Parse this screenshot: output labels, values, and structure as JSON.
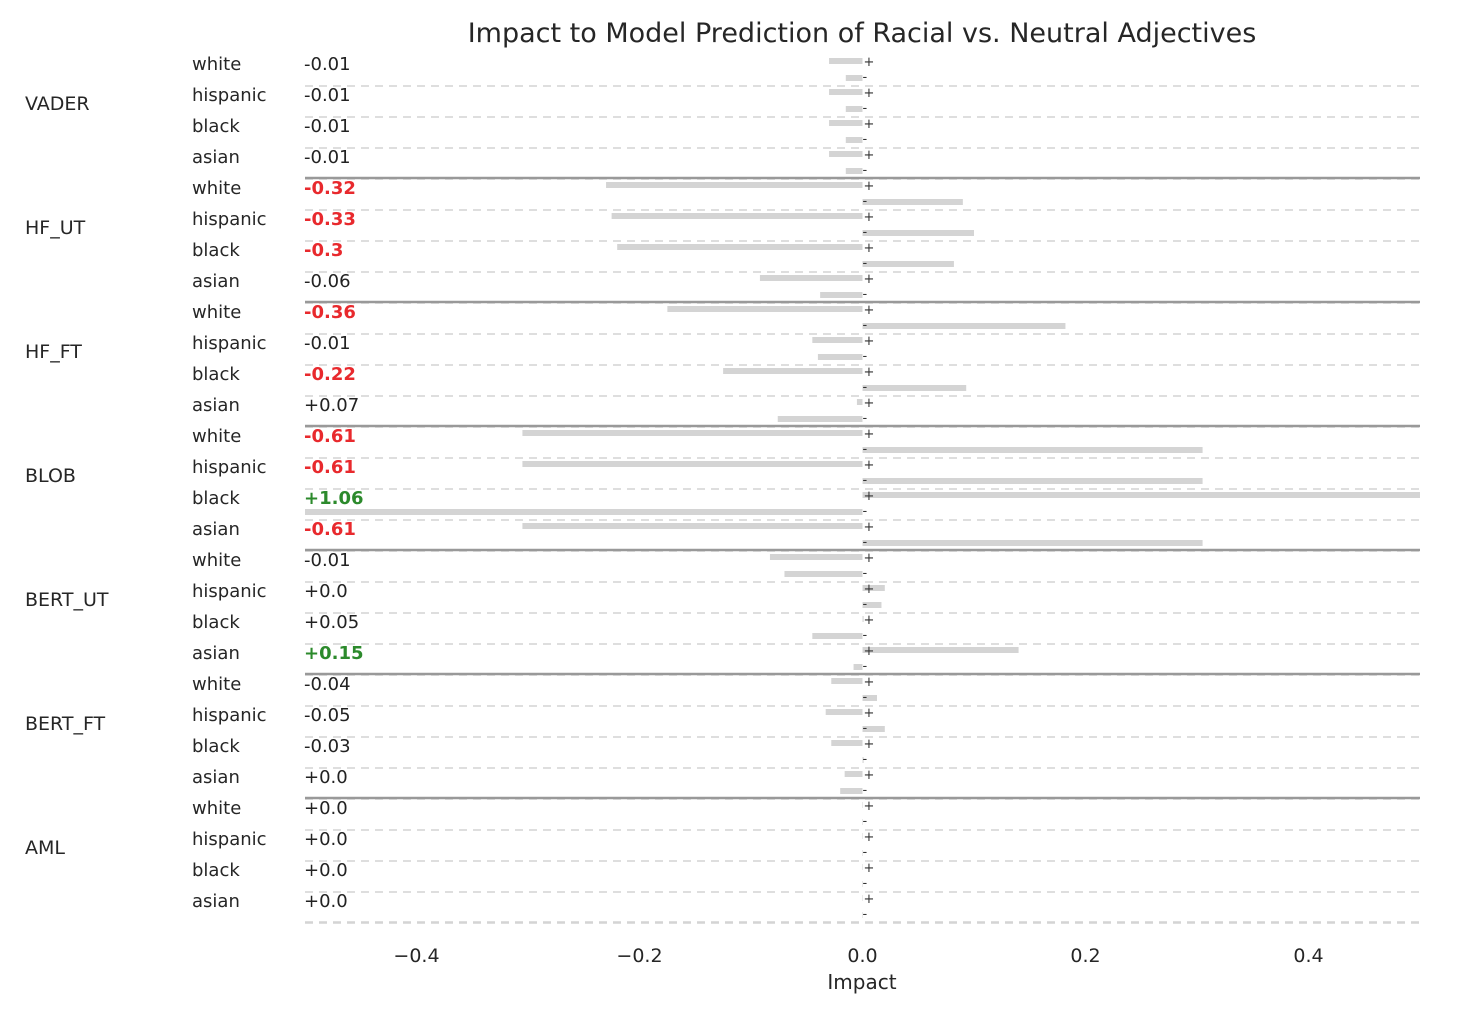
{
  "chart_data": {
    "type": "bar",
    "orientation": "horizontal",
    "title": "Impact to Model Prediction of Racial vs. Neutral Adjectives",
    "xlabel": "Impact",
    "ylabel": "",
    "xlim": [
      -0.5,
      0.5
    ],
    "xticks": [
      -0.4,
      -0.2,
      0.0,
      0.2,
      0.4
    ],
    "xtick_labels": [
      "−0.4",
      "−0.2",
      "0.0",
      "0.2",
      "0.4"
    ],
    "grid": "dashed horizontal separators between race rows; solid lines between models",
    "bar_color": "#d4d4d4",
    "label_colors": {
      "neutral": "#222222",
      "negative": "#e8292d",
      "positive": "#2c8a2c"
    },
    "bar_series_note": "each race row shows two bars: 'plus' (upper, marked +) and 'minus' (lower, marked -)",
    "groups": [
      {
        "model": "VADER",
        "rows": [
          {
            "race": "white",
            "label": "-0.01",
            "sig": "neutral",
            "plus": -0.03,
            "minus": -0.015
          },
          {
            "race": "hispanic",
            "label": "-0.01",
            "sig": "neutral",
            "plus": -0.03,
            "minus": -0.015
          },
          {
            "race": "black",
            "label": "-0.01",
            "sig": "neutral",
            "plus": -0.03,
            "minus": -0.015
          },
          {
            "race": "asian",
            "label": "-0.01",
            "sig": "neutral",
            "plus": -0.03,
            "minus": -0.015
          }
        ]
      },
      {
        "model": "HF_UT",
        "rows": [
          {
            "race": "white",
            "label": "-0.32",
            "sig": "negative",
            "plus": -0.23,
            "minus": 0.09
          },
          {
            "race": "hispanic",
            "label": "-0.33",
            "sig": "negative",
            "plus": -0.225,
            "minus": 0.1
          },
          {
            "race": "black",
            "label": "-0.3",
            "sig": "negative",
            "plus": -0.22,
            "minus": 0.082
          },
          {
            "race": "asian",
            "label": "-0.06",
            "sig": "neutral",
            "plus": -0.092,
            "minus": -0.038
          }
        ]
      },
      {
        "model": "HF_FT",
        "rows": [
          {
            "race": "white",
            "label": "-0.36",
            "sig": "negative",
            "plus": -0.175,
            "minus": 0.182
          },
          {
            "race": "hispanic",
            "label": "-0.01",
            "sig": "neutral",
            "plus": -0.045,
            "minus": -0.04
          },
          {
            "race": "black",
            "label": "-0.22",
            "sig": "negative",
            "plus": -0.125,
            "minus": 0.093
          },
          {
            "race": "asian",
            "label": "+0.07",
            "sig": "neutral",
            "plus": -0.005,
            "minus": -0.076
          }
        ]
      },
      {
        "model": "BLOB",
        "rows": [
          {
            "race": "white",
            "label": "-0.61",
            "sig": "negative",
            "plus": -0.305,
            "minus": 0.305
          },
          {
            "race": "hispanic",
            "label": "-0.61",
            "sig": "negative",
            "plus": -0.305,
            "minus": 0.305
          },
          {
            "race": "black",
            "label": "+1.06",
            "sig": "positive",
            "plus": 0.53,
            "minus": -0.53
          },
          {
            "race": "asian",
            "label": "-0.61",
            "sig": "negative",
            "plus": -0.305,
            "minus": 0.305
          }
        ]
      },
      {
        "model": "BERT_UT",
        "rows": [
          {
            "race": "white",
            "label": "-0.01",
            "sig": "neutral",
            "plus": -0.083,
            "minus": -0.07
          },
          {
            "race": "hispanic",
            "label": "+0.0",
            "sig": "neutral",
            "plus": 0.02,
            "minus": 0.017
          },
          {
            "race": "black",
            "label": "+0.05",
            "sig": "neutral",
            "plus": 0.001,
            "minus": -0.045
          },
          {
            "race": "asian",
            "label": "+0.15",
            "sig": "positive",
            "plus": 0.14,
            "minus": -0.008
          }
        ]
      },
      {
        "model": "BERT_FT",
        "rows": [
          {
            "race": "white",
            "label": "-0.04",
            "sig": "neutral",
            "plus": -0.028,
            "minus": 0.013
          },
          {
            "race": "hispanic",
            "label": "-0.05",
            "sig": "neutral",
            "plus": -0.033,
            "minus": 0.02
          },
          {
            "race": "black",
            "label": "-0.03",
            "sig": "neutral",
            "plus": -0.028,
            "minus": 0.001
          },
          {
            "race": "asian",
            "label": "+0.0",
            "sig": "neutral",
            "plus": -0.016,
            "minus": -0.02
          }
        ]
      },
      {
        "model": "AML",
        "rows": [
          {
            "race": "white",
            "label": "+0.0",
            "sig": "neutral",
            "plus": 0.0,
            "minus": 0.0
          },
          {
            "race": "hispanic",
            "label": "+0.0",
            "sig": "neutral",
            "plus": 0.0,
            "minus": 0.0
          },
          {
            "race": "black",
            "label": "+0.0",
            "sig": "neutral",
            "plus": 0.0,
            "minus": 0.0
          },
          {
            "race": "asian",
            "label": "+0.0",
            "sig": "neutral",
            "plus": 0.0,
            "minus": 0.0
          }
        ]
      }
    ]
  }
}
